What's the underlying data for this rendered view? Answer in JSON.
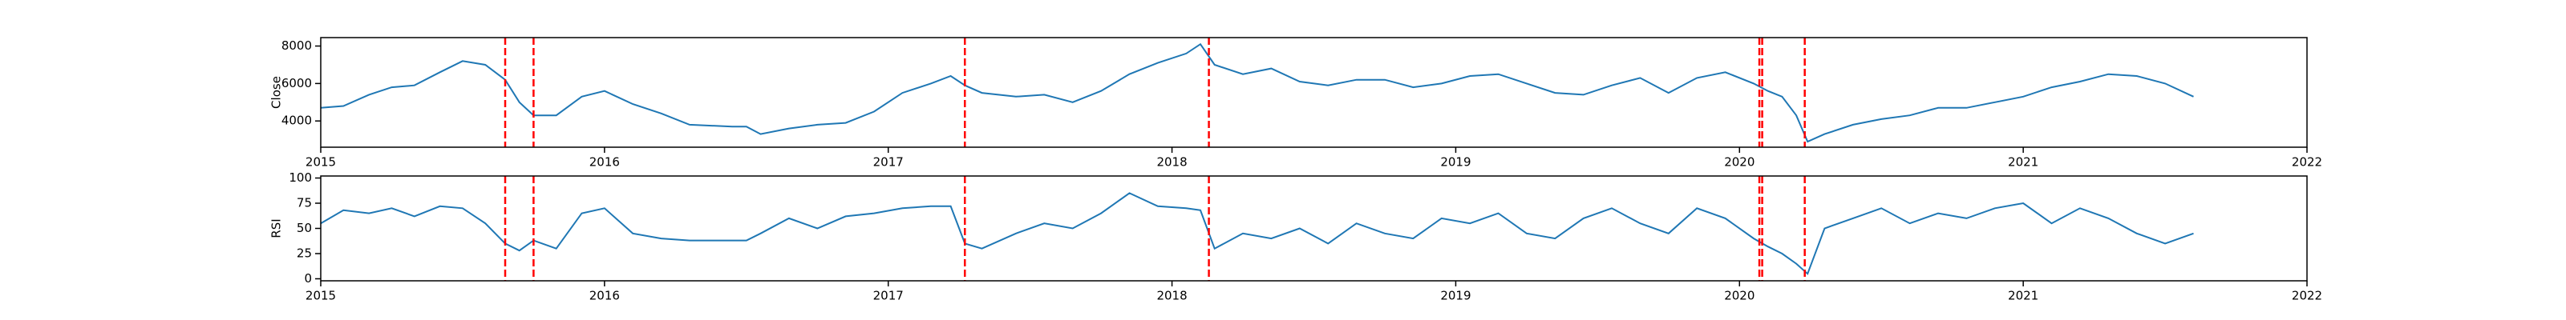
{
  "chart_data": [
    {
      "type": "line",
      "ylabel": "Close",
      "x": [
        2015.0,
        2015.08,
        2015.17,
        2015.25,
        2015.33,
        2015.42,
        2015.5,
        2015.58,
        2015.65,
        2015.7,
        2015.75,
        2015.83,
        2015.92,
        2016.0,
        2016.1,
        2016.2,
        2016.3,
        2016.45,
        2016.5,
        2016.55,
        2016.65,
        2016.75,
        2016.85,
        2016.95,
        2017.05,
        2017.15,
        2017.22,
        2017.27,
        2017.33,
        2017.45,
        2017.55,
        2017.65,
        2017.75,
        2017.85,
        2017.95,
        2018.05,
        2018.1,
        2018.15,
        2018.25,
        2018.35,
        2018.45,
        2018.55,
        2018.65,
        2018.75,
        2018.85,
        2018.95,
        2019.05,
        2019.15,
        2019.25,
        2019.35,
        2019.45,
        2019.55,
        2019.65,
        2019.75,
        2019.85,
        2019.95,
        2020.05,
        2020.1,
        2020.15,
        2020.2,
        2020.24,
        2020.3,
        2020.4,
        2020.5,
        2020.6,
        2020.7,
        2020.8,
        2020.9,
        2021.0,
        2021.1,
        2021.2,
        2021.3,
        2021.4,
        2021.5,
        2021.6
      ],
      "values": [
        4700,
        4800,
        5400,
        5800,
        5900,
        6600,
        7200,
        7000,
        6200,
        5000,
        4300,
        4300,
        5300,
        5600,
        4900,
        4400,
        3800,
        3700,
        3700,
        3300,
        3600,
        3800,
        3900,
        4500,
        5500,
        6000,
        6400,
        5900,
        5500,
        5300,
        5400,
        5000,
        5600,
        6500,
        7100,
        7600,
        8100,
        7000,
        6500,
        6800,
        6100,
        5900,
        6200,
        6200,
        5800,
        6000,
        6400,
        6500,
        6000,
        5500,
        5400,
        5900,
        6300,
        5500,
        6300,
        6600,
        6000,
        5600,
        5300,
        4300,
        2900,
        3300,
        3800,
        4100,
        4300,
        4700,
        4700,
        5000,
        5300,
        5800,
        6100,
        6500,
        6400,
        6000,
        5300
      ],
      "color": "#1f77b4",
      "vlines": [
        2015.65,
        2015.75,
        2017.27,
        2018.13,
        2020.07,
        2020.08,
        2020.23
      ],
      "vline_color": "#ff0000",
      "xlim": [
        2015,
        2022
      ],
      "xticks": [
        2015,
        2016,
        2017,
        2018,
        2019,
        2020,
        2021,
        2022
      ],
      "ylim": [
        2600,
        8450
      ],
      "yticks": [
        4000,
        6000,
        8000
      ]
    },
    {
      "type": "line",
      "ylabel": "RSI",
      "x": [
        2015.0,
        2015.08,
        2015.17,
        2015.25,
        2015.33,
        2015.42,
        2015.5,
        2015.58,
        2015.65,
        2015.7,
        2015.75,
        2015.83,
        2015.92,
        2016.0,
        2016.1,
        2016.2,
        2016.3,
        2016.45,
        2016.5,
        2016.55,
        2016.65,
        2016.75,
        2016.85,
        2016.95,
        2017.05,
        2017.15,
        2017.22,
        2017.27,
        2017.33,
        2017.45,
        2017.55,
        2017.65,
        2017.75,
        2017.85,
        2017.95,
        2018.05,
        2018.1,
        2018.15,
        2018.25,
        2018.35,
        2018.45,
        2018.55,
        2018.65,
        2018.75,
        2018.85,
        2018.95,
        2019.05,
        2019.15,
        2019.25,
        2019.35,
        2019.45,
        2019.55,
        2019.65,
        2019.75,
        2019.85,
        2019.95,
        2020.05,
        2020.1,
        2020.15,
        2020.2,
        2020.24,
        2020.3,
        2020.4,
        2020.5,
        2020.6,
        2020.7,
        2020.8,
        2020.9,
        2021.0,
        2021.1,
        2021.2,
        2021.3,
        2021.4,
        2021.5,
        2021.6
      ],
      "values": [
        55,
        68,
        65,
        70,
        62,
        72,
        70,
        55,
        35,
        28,
        38,
        30,
        65,
        70,
        45,
        40,
        38,
        38,
        38,
        45,
        60,
        50,
        62,
        65,
        70,
        72,
        72,
        35,
        30,
        45,
        55,
        50,
        65,
        85,
        72,
        70,
        68,
        30,
        45,
        40,
        50,
        35,
        55,
        45,
        40,
        60,
        55,
        65,
        45,
        40,
        60,
        70,
        55,
        45,
        70,
        60,
        40,
        32,
        25,
        15,
        5,
        50,
        60,
        70,
        55,
        65,
        60,
        70,
        75,
        55,
        70,
        60,
        45,
        35,
        45
      ],
      "color": "#1f77b4",
      "vlines": [
        2015.65,
        2015.75,
        2017.27,
        2018.13,
        2020.07,
        2020.08,
        2020.23
      ],
      "vline_color": "#ff0000",
      "xlim": [
        2015,
        2022
      ],
      "xticks": [
        2015,
        2016,
        2017,
        2018,
        2019,
        2020,
        2021,
        2022
      ],
      "ylim": [
        -2,
        102
      ],
      "yticks": [
        0,
        25,
        50,
        75,
        100
      ]
    }
  ]
}
